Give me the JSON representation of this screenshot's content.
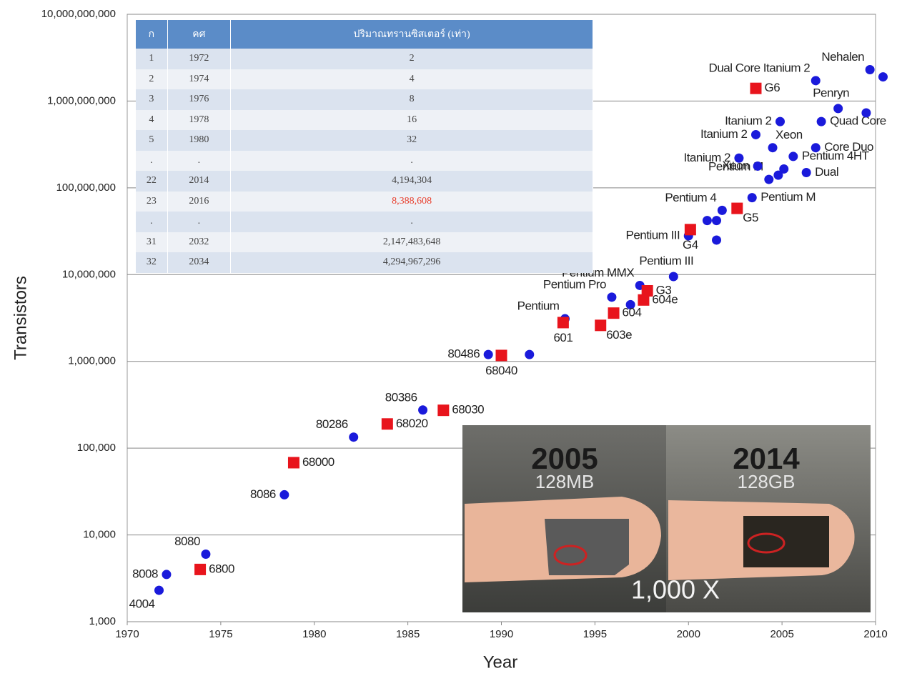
{
  "chart_data": {
    "type": "scatter",
    "x_label": "Year",
    "y_label": "Transistors",
    "xlim": [
      1970,
      2010
    ],
    "xticks": [
      1970,
      1975,
      1980,
      1985,
      1990,
      1995,
      2000,
      2005,
      2010
    ],
    "ylim": [
      1000,
      10000000000
    ],
    "log_y": true,
    "grid": true,
    "yticks": [
      {
        "value": 1000,
        "label": "1,000"
      },
      {
        "value": 10000,
        "label": "10,000"
      },
      {
        "value": 100000,
        "label": "100,000"
      },
      {
        "value": 1000000,
        "label": "1,000,000"
      },
      {
        "value": 10000000,
        "label": "10,000,000"
      },
      {
        "value": 100000000,
        "label": "100,000,000"
      },
      {
        "value": 1000000000,
        "label": "1,000,000,000"
      },
      {
        "value": 10000000000,
        "label": "10,000,000,000"
      }
    ],
    "series": [
      {
        "color": "#1a1adb",
        "marker": "circle",
        "x": [
          1971.7,
          1972.1,
          1974.2,
          1978.4,
          1982.1,
          1985.8,
          1989.3,
          1991.5,
          1993.4,
          1995.9,
          1996.9,
          1997.4,
          1999.2,
          2000.0,
          2001.0,
          2001.5,
          2001.5,
          2001.8,
          2003.4,
          2004.3,
          2003.7,
          2002.7,
          2004.8,
          2005.1,
          2004.5,
          2005.6,
          2003.6,
          2004.9,
          2006.3,
          2006.8,
          2007.1,
          2008.0,
          2009.5,
          2006.8,
          2009.7,
          2010.4
        ],
        "values": [
          2300,
          3500,
          6000,
          29000,
          134000,
          275000,
          1200000,
          1200000,
          3100000,
          5500000,
          4500000,
          7500000,
          9500000,
          28000000,
          42000000,
          42000000,
          25000000,
          55000000,
          77000000,
          125000000,
          178000000,
          220000000,
          140000000,
          165000000,
          290000000,
          230000000,
          410000000,
          580000000,
          150000000,
          290000000,
          580000000,
          820000000,
          730000000,
          1720000000,
          2300000000,
          1900000000
        ],
        "labels": [
          "4004",
          "8008",
          "8080",
          "8086",
          "80286",
          "80386",
          "80486",
          null,
          "Pentium",
          "Pentium Pro",
          null,
          "Pentium MMX",
          "Pentium III",
          "Pentium III",
          null,
          null,
          null,
          "Pentium 4",
          "Pentium M",
          "Pentium M",
          "Xeon",
          "Itanium 2",
          null,
          null,
          "Xeon",
          "Pentium 4HT",
          "Itanium 2",
          "Itanium 2",
          "Dual",
          "Core Duo",
          "Quad Core",
          "Penryn",
          null,
          "Dual Core Itanium 2",
          "Nehalen",
          null
        ]
      },
      {
        "color": "#e8141c",
        "marker": "square",
        "x": [
          1973.9,
          1978.9,
          1983.9,
          1986.9,
          1990.0,
          1993.3,
          1995.3,
          1996.0,
          1997.6,
          1997.8,
          2000.1,
          2002.6,
          2003.6
        ],
        "values": [
          4000,
          68000,
          190000,
          273000,
          1170000,
          2800000,
          2600000,
          3600000,
          5100000,
          6500000,
          33000000,
          58000000,
          1400000000
        ],
        "labels": [
          "6800",
          "68000",
          "68020",
          "68030",
          "68040",
          "601",
          "603e",
          "604",
          "604e",
          "G3",
          "G4",
          "G5",
          "G6"
        ]
      }
    ]
  },
  "table": {
    "header": [
      "ก",
      "คศ",
      "ปริมาณทรานซิสเตอร์ (เท่า)"
    ],
    "rows": [
      [
        "1",
        "1972",
        "2"
      ],
      [
        "2",
        "1974",
        "4"
      ],
      [
        "3",
        "1976",
        "8"
      ],
      [
        "4",
        "1978",
        "16"
      ],
      [
        "5",
        "1980",
        "32"
      ],
      [
        ".",
        ".",
        "."
      ],
      [
        "22",
        "2014",
        "4,194,304"
      ],
      [
        "23",
        "2016",
        "8,388,608"
      ],
      [
        ".",
        ".",
        "."
      ],
      [
        "31",
        "2032",
        "2,147,483,648"
      ],
      [
        "32",
        "2034",
        "4,294,967,296"
      ]
    ],
    "highlight": {
      "row": 7,
      "col": 2,
      "color": "#e8402e"
    }
  },
  "inset": {
    "left_year": "2005",
    "left_size": "128MB",
    "right_year": "2014",
    "right_size": "128GB",
    "caption": "1,000 X"
  }
}
